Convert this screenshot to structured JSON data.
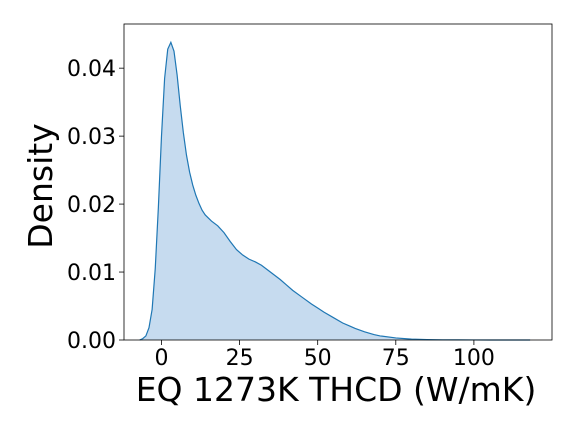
{
  "chart_data": {
    "type": "area",
    "title": "",
    "xlabel": "EQ 1273K THCD (W/mK)",
    "ylabel": "Density",
    "xlim": [
      -12,
      125
    ],
    "ylim": [
      0,
      0.0465
    ],
    "xticks": [
      0,
      25,
      50,
      75,
      100
    ],
    "xtick_labels": [
      "0",
      "25",
      "50",
      "75",
      "100"
    ],
    "yticks": [
      0.0,
      0.01,
      0.02,
      0.03,
      0.04
    ],
    "ytick_labels": [
      "0.00",
      "0.01",
      "0.02",
      "0.03",
      "0.04"
    ],
    "grid": false,
    "legend": "none",
    "line_color": "#1f77b4",
    "fill_color": "#c6dbef",
    "series": [
      {
        "x": [
          -7,
          -6,
          -5,
          -4,
          -3,
          -2,
          -1,
          0,
          1,
          2,
          3,
          4,
          5,
          6,
          7,
          8,
          9,
          10,
          11,
          12,
          13,
          14,
          16,
          18,
          20,
          22,
          24,
          26,
          28,
          30,
          32,
          34,
          36,
          38,
          40,
          42,
          45,
          48,
          50,
          52,
          55,
          58,
          60,
          62,
          65,
          68,
          70,
          75,
          80,
          85,
          90,
          95,
          100,
          105,
          110,
          115,
          118
        ],
        "y": [
          0.0,
          0.0002,
          0.0006,
          0.0018,
          0.0045,
          0.0105,
          0.0195,
          0.03,
          0.0385,
          0.0428,
          0.0438,
          0.0425,
          0.039,
          0.0345,
          0.0305,
          0.0272,
          0.0247,
          0.0228,
          0.0213,
          0.0201,
          0.0191,
          0.0184,
          0.0175,
          0.0168,
          0.0158,
          0.0145,
          0.0133,
          0.0125,
          0.0119,
          0.0115,
          0.011,
          0.0103,
          0.0096,
          0.0089,
          0.0081,
          0.0073,
          0.0063,
          0.0053,
          0.0047,
          0.0041,
          0.0033,
          0.0025,
          0.0021,
          0.0017,
          0.0012,
          0.0008,
          0.0006,
          0.0003,
          0.00013,
          6e-05,
          3e-05,
          1.5e-05,
          8e-06,
          4e-06,
          2e-06,
          1e-06,
          0.0
        ]
      }
    ]
  }
}
